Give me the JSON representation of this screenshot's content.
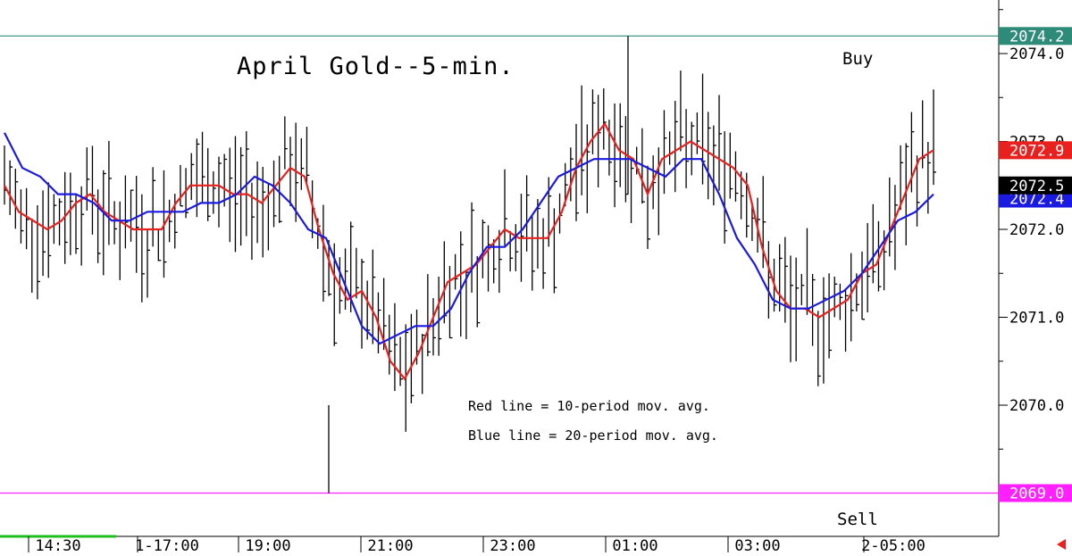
{
  "chart_data": {
    "type": "ohlc-bar",
    "title": "April Gold--5-min.",
    "y_ticks": [
      2074.0,
      2073.0,
      2072.0,
      2071.0,
      2070.0
    ],
    "y_range": [
      2068.6,
      2075.4
    ],
    "x_tick_labels": [
      "14:30",
      "1-17:00",
      "19:00",
      "21:00",
      "23:00",
      "01:00",
      "03:00",
      "2-05:00"
    ],
    "price_tags": [
      {
        "label": "2074.2",
        "value": 2074.2,
        "color": "#2e8b7a"
      },
      {
        "label": "2072.9",
        "value": 2072.9,
        "color": "#e8201e"
      },
      {
        "label": "2072.4",
        "value": 2072.35,
        "color": "#1a1ae0"
      },
      {
        "label": "2072.5",
        "value": 2072.5,
        "color": "#000000"
      },
      {
        "label": "2069.0",
        "value": 2069.0,
        "color": "#ff1fff"
      }
    ],
    "horizontal_lines": [
      {
        "value": 2074.2,
        "color": "#2e8b7a"
      },
      {
        "value": 2069.0,
        "color": "#ff1fff"
      }
    ],
    "signals": [
      {
        "text": "Buy",
        "color": "#1e7a1e"
      },
      {
        "text": "Sell",
        "color": "#ff1fff"
      }
    ],
    "legend_notes": [
      {
        "text": "Red line = 10-period mov. avg.",
        "color": "#e8201e"
      },
      {
        "text": "Blue line = 20-period mov. avg.",
        "color": "#1a1ae0"
      }
    ],
    "red_ma_10": [
      2072.5,
      2072.2,
      2072.1,
      2072.0,
      2072.1,
      2072.3,
      2072.4,
      2072.2,
      2072.1,
      2072.0,
      2072.0,
      2072.0,
      2072.3,
      2072.5,
      2072.5,
      2072.5,
      2072.4,
      2072.4,
      2072.3,
      2072.5,
      2072.7,
      2072.6,
      2072.0,
      2071.5,
      2071.2,
      2071.3,
      2071.0,
      2070.5,
      2070.3,
      2070.6,
      2071.0,
      2071.4,
      2071.5,
      2071.6,
      2071.8,
      2072.0,
      2071.9,
      2071.9,
      2071.9,
      2072.2,
      2072.7,
      2073.0,
      2073.2,
      2072.9,
      2072.8,
      2072.4,
      2072.8,
      2072.9,
      2073.0,
      2072.9,
      2072.8,
      2072.7,
      2072.5,
      2071.8,
      2071.3,
      2071.1,
      2071.1,
      2071.0,
      2071.1,
      2071.2,
      2071.5,
      2071.6,
      2072.0,
      2072.4,
      2072.8,
      2072.9
    ],
    "blue_ma_20": [
      2073.1,
      2072.7,
      2072.6,
      2072.4,
      2072.4,
      2072.3,
      2072.1,
      2072.1,
      2072.2,
      2072.2,
      2072.2,
      2072.3,
      2072.3,
      2072.4,
      2072.6,
      2072.5,
      2072.3,
      2072.0,
      2071.9,
      2071.4,
      2070.9,
      2070.7,
      2070.8,
      2070.9,
      2070.9,
      2071.1,
      2071.5,
      2071.8,
      2071.8,
      2072.0,
      2072.3,
      2072.6,
      2072.7,
      2072.8,
      2072.8,
      2072.8,
      2072.7,
      2072.6,
      2072.8,
      2072.8,
      2072.4,
      2071.9,
      2071.6,
      2071.2,
      2071.1,
      2071.1,
      2071.2,
      2071.3,
      2071.5,
      2071.8,
      2072.1,
      2072.2,
      2072.4
    ]
  }
}
